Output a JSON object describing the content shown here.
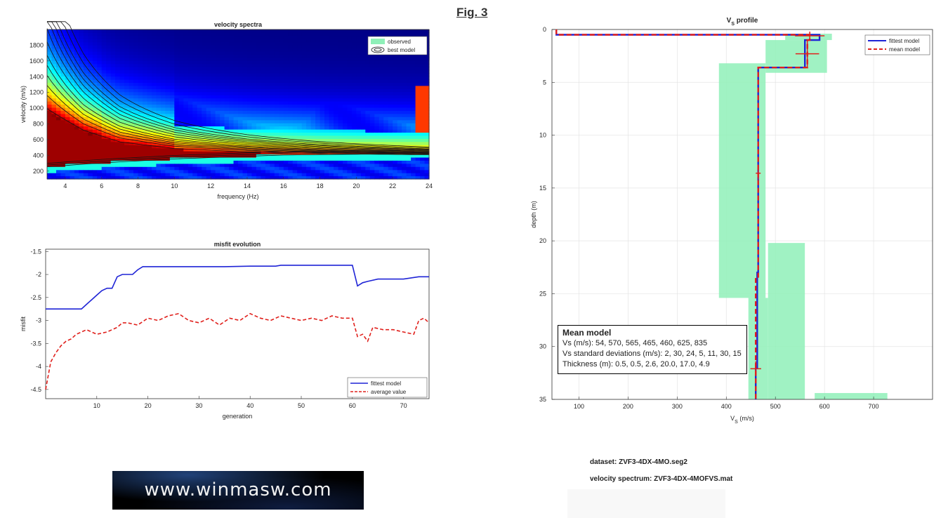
{
  "figure": {
    "label": "Fig. 3",
    "dataset": "dataset: ZVF3-4DX-4MO.seg2",
    "velocity_spectrum": "velocity spectrum: ZVF3-4DX-4MOFVS.mat",
    "logo_text": "www.winmasw.com"
  },
  "mean_model": {
    "title": "Mean model",
    "vs": "Vs (m/s): 54, 570, 565, 465, 460, 625, 835",
    "std": "Vs standard deviations (m/s): 2, 30, 24, 5, 11, 30, 15",
    "thickness": "Thickness (m): 0.5, 0.5, 2.6, 20.0, 17.0, 4.9"
  },
  "colors": {
    "fittest": "#1f24d6",
    "mean": "#e0201c",
    "observed": "#8ff0b8",
    "contour": "#141414"
  },
  "chart_data": [
    {
      "type": "heatmap",
      "title": "velocity spectra",
      "xlabel": "frequency (Hz)",
      "ylabel": "velocity (m/s)",
      "xlim": [
        3,
        24
      ],
      "ylim": [
        100,
        2000
      ],
      "xticks": [
        4,
        6,
        8,
        10,
        12,
        14,
        16,
        18,
        20,
        22,
        24
      ],
      "yticks": [
        200,
        400,
        600,
        800,
        1000,
        1200,
        1400,
        1600,
        1800
      ],
      "legend": [
        "observed",
        "best model"
      ],
      "legend_position": "top-right",
      "colormap": "jet",
      "ridges": [
        {
          "x": [
            3,
            5,
            7,
            10,
            14,
            18,
            22,
            24
          ],
          "y": [
            950,
            700,
            560,
            480,
            440,
            420,
            410,
            405
          ]
        },
        {
          "x": [
            3,
            6,
            10,
            16,
            24
          ],
          "y": [
            230,
            280,
            330,
            380,
            400
          ]
        }
      ],
      "contour_levels": [
        1.0,
        1.2,
        1.35,
        1.5,
        1.65,
        1.8,
        2.0,
        2.2,
        2.4,
        2.6,
        2.8,
        3.1,
        3.4
      ]
    },
    {
      "type": "line",
      "title": "misfit evolution",
      "xlabel": "generation",
      "ylabel": "misfit",
      "xlim": [
        0,
        75
      ],
      "ylim": [
        -4.7,
        -1.45
      ],
      "xticks": [
        10,
        20,
        30,
        40,
        50,
        60,
        70
      ],
      "yticks": [
        -4.5,
        -4,
        -3.5,
        -3,
        -2.5,
        -2,
        -1.5
      ],
      "legend_position": "bottom-right",
      "series": [
        {
          "name": "fittest model",
          "x": [
            0,
            7,
            8,
            9,
            10,
            11,
            12,
            13,
            14,
            15,
            16,
            17,
            18,
            19,
            20,
            25,
            30,
            35,
            40,
            45,
            46,
            50,
            55,
            59,
            60,
            61,
            62,
            63,
            65,
            70,
            73,
            75
          ],
          "y": [
            -2.75,
            -2.75,
            -2.65,
            -2.55,
            -2.45,
            -2.35,
            -2.3,
            -2.3,
            -2.05,
            -2.0,
            -2.0,
            -2.0,
            -1.9,
            -1.83,
            -1.83,
            -1.83,
            -1.83,
            -1.83,
            -1.82,
            -1.82,
            -1.8,
            -1.8,
            -1.8,
            -1.8,
            -1.8,
            -2.25,
            -2.18,
            -2.15,
            -2.1,
            -2.1,
            -2.05,
            -2.05
          ]
        },
        {
          "name": "average value",
          "x": [
            0,
            1,
            2,
            3,
            4,
            5,
            6,
            7,
            8,
            9,
            10,
            12,
            14,
            15,
            16,
            18,
            20,
            22,
            24,
            26,
            28,
            30,
            32,
            34,
            36,
            38,
            40,
            42,
            44,
            46,
            48,
            50,
            52,
            54,
            56,
            58,
            60,
            61,
            62,
            63,
            64,
            66,
            68,
            70,
            72,
            73,
            74,
            75
          ],
          "y": [
            -4.5,
            -3.9,
            -3.7,
            -3.55,
            -3.45,
            -3.4,
            -3.3,
            -3.25,
            -3.2,
            -3.25,
            -3.3,
            -3.25,
            -3.15,
            -3.05,
            -3.05,
            -3.1,
            -2.95,
            -3.0,
            -2.9,
            -2.85,
            -3.0,
            -3.05,
            -2.95,
            -3.1,
            -2.95,
            -3.0,
            -2.85,
            -2.95,
            -3.0,
            -2.9,
            -2.95,
            -3.0,
            -2.95,
            -3.0,
            -2.9,
            -2.95,
            -2.95,
            -3.35,
            -3.3,
            -3.45,
            -3.15,
            -3.2,
            -3.2,
            -3.25,
            -3.3,
            -3.0,
            -2.95,
            -3.05
          ]
        }
      ]
    },
    {
      "type": "line",
      "title": "V_S profile",
      "xlabel": "V_S (m/s)",
      "ylabel": "depth (m)",
      "xlim": [
        45,
        820
      ],
      "ylim": [
        0,
        35
      ],
      "y_reversed": true,
      "xticks": [
        100,
        200,
        300,
        400,
        500,
        600,
        700
      ],
      "yticks": [
        0,
        5,
        10,
        15,
        20,
        25,
        30,
        35
      ],
      "legend_position": "top-right",
      "series": [
        {
          "name": "fittest model",
          "x": [
            54,
            54,
            590,
            590,
            560,
            560,
            465,
            465,
            463,
            463,
            460,
            460
          ],
          "y": [
            0,
            0.5,
            0.5,
            1.0,
            1.0,
            3.6,
            3.6,
            23.0,
            23.0,
            32.0,
            32.0,
            35.0
          ]
        },
        {
          "name": "mean model",
          "x": [
            54,
            54,
            570,
            570,
            565,
            565,
            465,
            465,
            460,
            460
          ],
          "y": [
            0,
            0.5,
            0.5,
            1.0,
            1.0,
            3.6,
            3.6,
            23.6,
            23.6,
            35.0
          ]
        }
      ],
      "error_crosses": [
        {
          "x": 570,
          "y": 0.6,
          "xerr": 30,
          "yerr": 0.4
        },
        {
          "x": 565,
          "y": 2.3,
          "xerr": 24,
          "yerr": 1.3
        },
        {
          "x": 465,
          "y": 13.6,
          "xerr": 5,
          "yerr": 0.6
        },
        {
          "x": 460,
          "y": 32.1,
          "xerr": 11,
          "yerr": 0.7
        }
      ],
      "observed_boxes": [
        {
          "x0": 520,
          "x1": 615,
          "y0": 0.4,
          "y1": 1.0
        },
        {
          "x0": 480,
          "x1": 605,
          "y0": 1.0,
          "y1": 4.1
        },
        {
          "x0": 385,
          "x1": 480,
          "y0": 3.2,
          "y1": 25.4
        },
        {
          "x0": 485,
          "x1": 560,
          "y0": 20.2,
          "y1": 35.0
        },
        {
          "x0": 445,
          "x1": 485,
          "y0": 25.4,
          "y1": 35.0
        },
        {
          "x0": 580,
          "x1": 728,
          "y0": 34.4,
          "y1": 35.0
        }
      ]
    }
  ]
}
